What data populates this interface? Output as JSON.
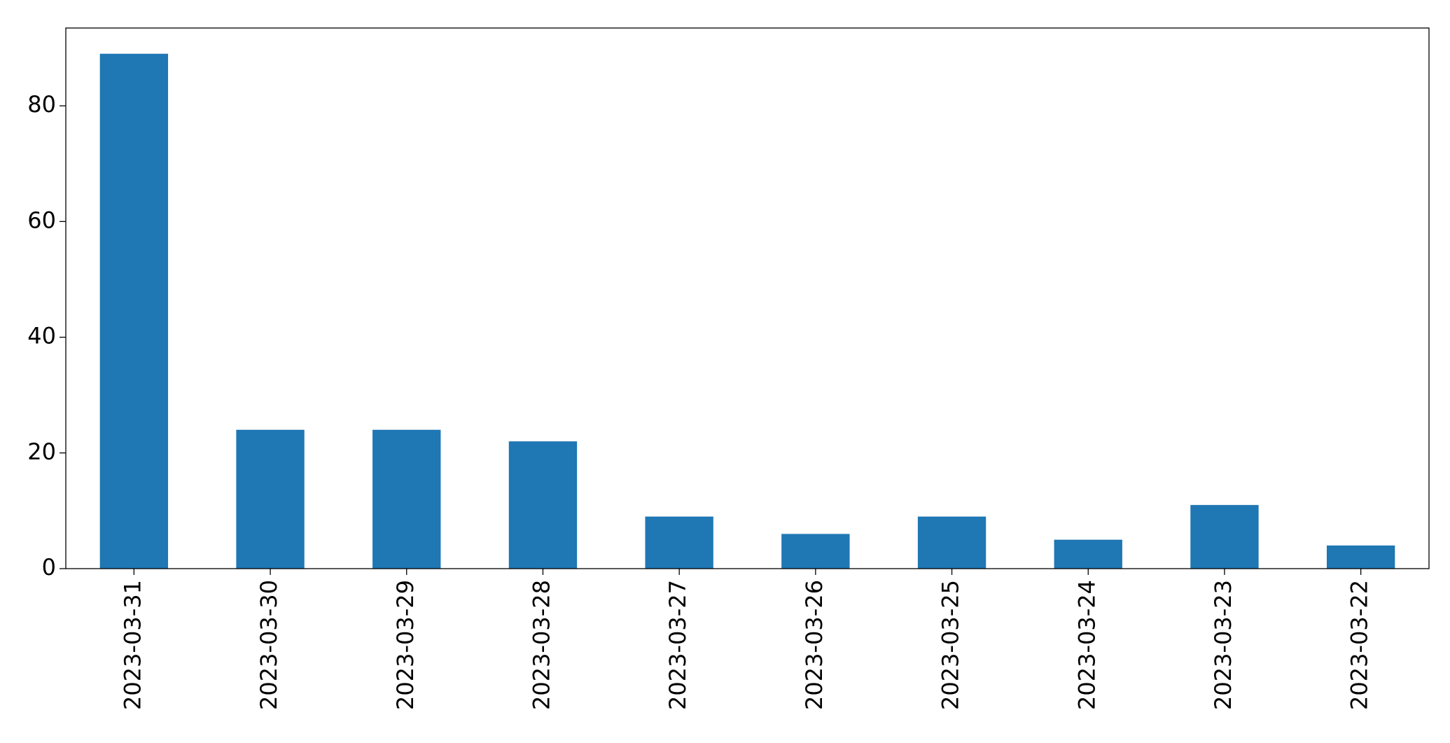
{
  "chart_data": {
    "type": "bar",
    "categories": [
      "2023-03-31",
      "2023-03-30",
      "2023-03-29",
      "2023-03-28",
      "2023-03-27",
      "2023-03-26",
      "2023-03-25",
      "2023-03-24",
      "2023-03-23",
      "2023-03-22"
    ],
    "values": [
      89,
      24,
      24,
      22,
      9,
      6,
      9,
      5,
      11,
      4
    ],
    "color": "#1f77b4",
    "ylim": [
      0,
      93.45
    ],
    "yticks": [
      0,
      20,
      40,
      60,
      80
    ],
    "grid": false
  }
}
